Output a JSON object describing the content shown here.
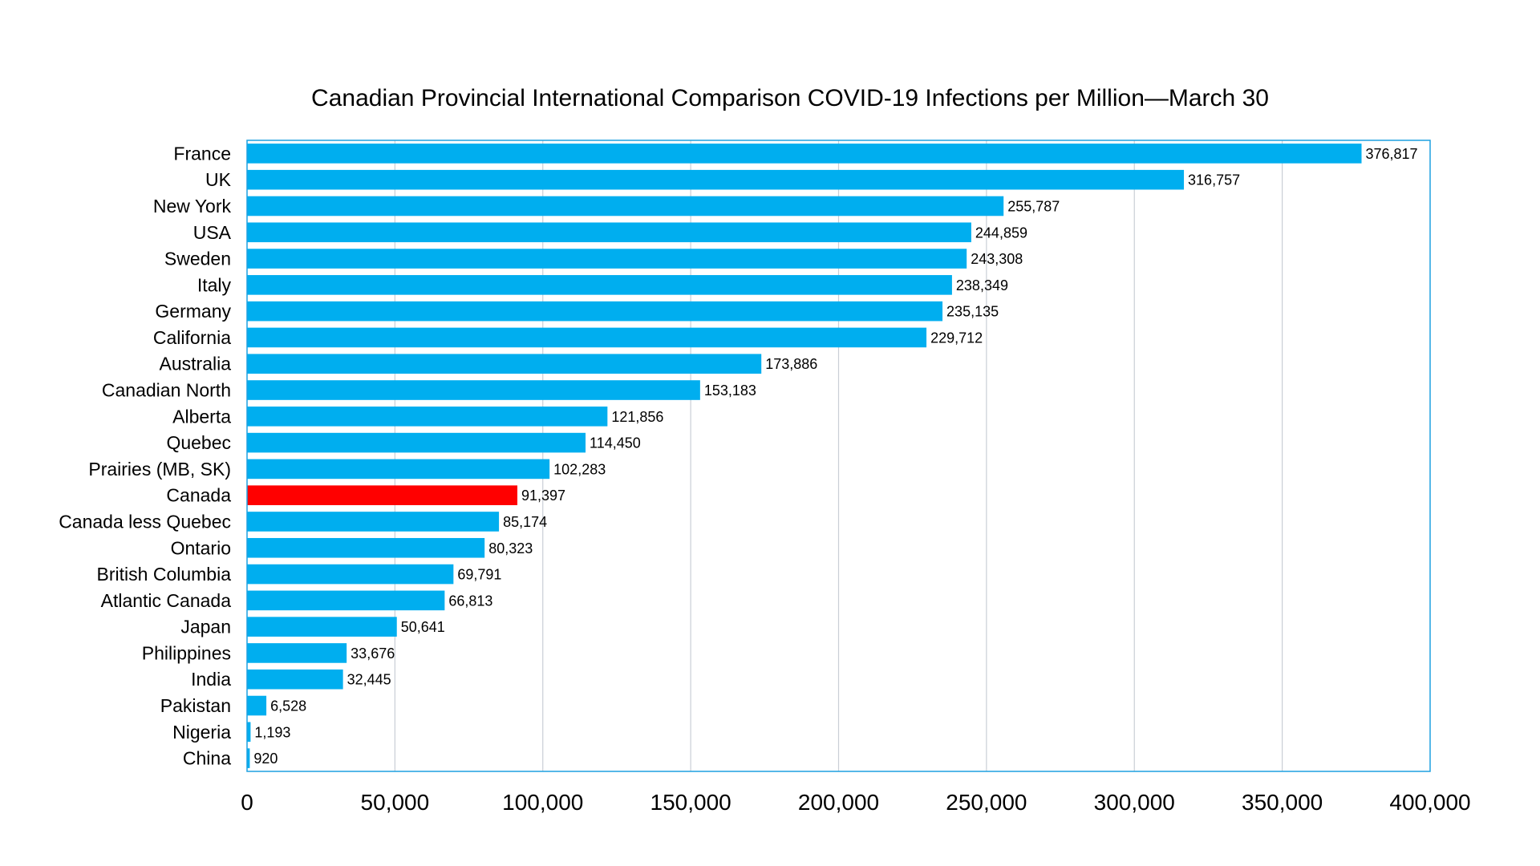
{
  "chart_data": {
    "type": "bar",
    "orientation": "horizontal",
    "title": "Canadian Provincial International Comparison COVID-19 Infections per Million—March 30",
    "xlabel": "",
    "ylabel": "",
    "categories": [
      "France",
      "UK",
      "New York",
      "USA",
      "Sweden",
      "Italy",
      "Germany",
      "California",
      "Australia",
      "Canadian North",
      "Alberta",
      "Quebec",
      "Prairies (MB, SK)",
      "Canada",
      "Canada less Quebec",
      "Ontario",
      "British Columbia",
      "Atlantic Canada",
      "Japan",
      "Philippines",
      "India",
      "Pakistan",
      "Nigeria",
      "China"
    ],
    "values": [
      376817,
      316757,
      255787,
      244859,
      243308,
      238349,
      235135,
      229712,
      173886,
      153183,
      121856,
      114450,
      102283,
      91397,
      85174,
      80323,
      69791,
      66813,
      50641,
      33676,
      32445,
      6528,
      1193,
      920
    ],
    "value_labels": [
      "376,817",
      "316,757",
      "255,787",
      "244,859",
      "243,308",
      "238,349",
      "235,135",
      "229,712",
      "173,886",
      "153,183",
      "121,856",
      "114,450",
      "102,283",
      "91,397",
      "85,174",
      "80,323",
      "69,791",
      "66,813",
      "50,641",
      "33,676",
      "32,445",
      "6,528",
      "1,193",
      "920"
    ],
    "highlight_category": "Canada",
    "xlim": [
      0,
      400000
    ],
    "xticks": [
      0,
      50000,
      100000,
      150000,
      200000,
      250000,
      300000,
      350000,
      400000
    ],
    "xtick_labels": [
      "0",
      "50,000",
      "100,000",
      "150,000",
      "200,000",
      "250,000",
      "300,000",
      "350,000",
      "400,000"
    ],
    "grid": true,
    "legend": "none",
    "colors": {
      "bar": "#00AEEF",
      "highlight": "#FF0000",
      "grid": "#C9CED6",
      "frame": "#1DA1E0",
      "text": "#000000"
    }
  }
}
